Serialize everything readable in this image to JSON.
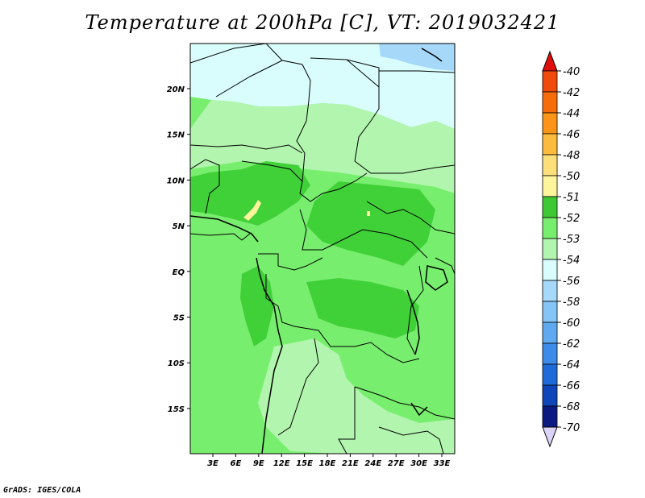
{
  "title": "Temperature at 200hPa [C], VT: 2019032421",
  "credit": "GrADS: IGES/COLA",
  "map": {
    "lat_ticks": [
      "20N",
      "15N",
      "10N",
      "5N",
      "EQ",
      "5S",
      "10S",
      "15S"
    ],
    "lon_ticks": [
      "3E",
      "6E",
      "9E",
      "12E",
      "15E",
      "18E",
      "21E",
      "24E",
      "27E",
      "30E",
      "33E"
    ],
    "fill_colors": {
      "ocean_and_desert": "#d9fdfd",
      "band_54": "#b2f5ae",
      "band_53": "#78ee6e",
      "band_52": "#40d038",
      "band_51": "#fdf49c",
      "band_56": "#a6d8fa"
    }
  },
  "colorbar": {
    "levels": [
      {
        "label": "-40",
        "color": "#e91a0e"
      },
      {
        "label": "-42",
        "color": "#f04a0c"
      },
      {
        "label": "-44",
        "color": "#f76c0a"
      },
      {
        "label": "-46",
        "color": "#fb9418"
      },
      {
        "label": "-48",
        "color": "#fcbb3c"
      },
      {
        "label": "-50",
        "color": "#fde07a"
      },
      {
        "label": "-51",
        "color": "#fdf49c"
      },
      {
        "label": "-52",
        "color": "#3ec934"
      },
      {
        "label": "-53",
        "color": "#78ee6e"
      },
      {
        "label": "-54",
        "color": "#b2f5ae"
      },
      {
        "label": "-56",
        "color": "#d9fdfd"
      },
      {
        "label": "-58",
        "color": "#a6d8fa"
      },
      {
        "label": "-60",
        "color": "#84c4f6"
      },
      {
        "label": "-62",
        "color": "#5ea9f0"
      },
      {
        "label": "-64",
        "color": "#3c8be8"
      },
      {
        "label": "-66",
        "color": "#1e6ad8"
      },
      {
        "label": "-68",
        "color": "#0e45b8"
      },
      {
        "label": "-70",
        "color": "#0a1a80"
      }
    ],
    "top_arrow_color": "#e00d0d",
    "bottom_arrow_color": "#dcd4f6"
  }
}
